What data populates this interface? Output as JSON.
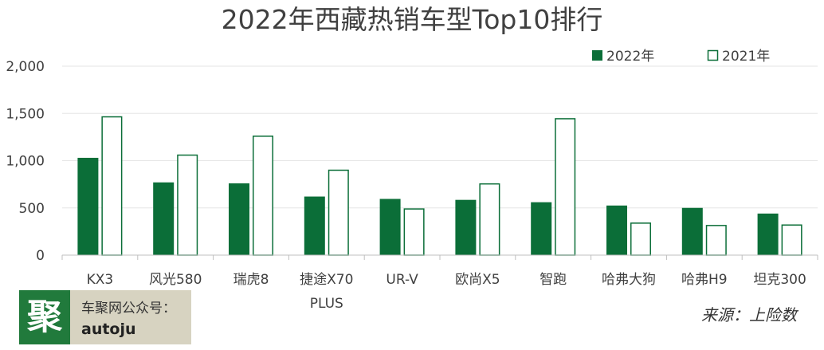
{
  "chart_data": {
    "type": "bar",
    "title": "2022年西藏热销车型Top10排行",
    "categories": [
      "KX3",
      "风光580",
      "瑞虎8",
      [
        "捷途X70",
        "PLUS"
      ],
      "UR-V",
      "欧尚X5",
      "智跑",
      "哈弗大狗",
      "哈弗H9",
      "坦克300"
    ],
    "series": [
      {
        "name": "2022年",
        "values": [
          1030,
          770,
          760,
          620,
          595,
          585,
          560,
          525,
          500,
          440
        ],
        "color": "#0b6e38",
        "filled": true
      },
      {
        "name": "2021年",
        "values": [
          1470,
          1065,
          1265,
          905,
          495,
          760,
          1450,
          345,
          320,
          325
        ],
        "color": "#0b6e38",
        "filled": false
      }
    ],
    "yticks": [
      "0",
      "500",
      "1,000",
      "1,500",
      "2,000"
    ],
    "ylim": [
      0,
      2000
    ],
    "grid": true,
    "legend_position": "top-right"
  },
  "badge": {
    "logo_char": "聚",
    "line1": "车聚网公众号：",
    "line2": "autoju"
  },
  "source": "来源：上险数"
}
